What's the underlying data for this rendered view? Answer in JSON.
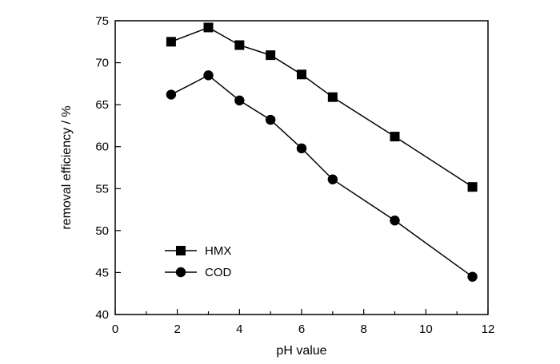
{
  "chart_data": {
    "type": "line",
    "title": "",
    "xlabel": "pH value",
    "ylabel": "removal efficiency / %",
    "xlim": [
      0,
      12
    ],
    "ylim": [
      40,
      75
    ],
    "x_ticks": [
      0,
      2,
      4,
      6,
      8,
      10,
      12
    ],
    "x_minor_ticks": [
      1,
      3,
      5,
      7,
      9,
      11
    ],
    "y_ticks": [
      40,
      45,
      50,
      55,
      60,
      65,
      70,
      75
    ],
    "grid": false,
    "legend_position": "bottom-left",
    "series": [
      {
        "name": "HMX",
        "marker": "square",
        "color": "#000000",
        "points": [
          {
            "x": 1.8,
            "y": 72.5
          },
          {
            "x": 3.0,
            "y": 74.2
          },
          {
            "x": 4.0,
            "y": 72.1
          },
          {
            "x": 5.0,
            "y": 70.9
          },
          {
            "x": 6.0,
            "y": 68.6
          },
          {
            "x": 7.0,
            "y": 65.9
          },
          {
            "x": 9.0,
            "y": 61.2
          },
          {
            "x": 11.5,
            "y": 55.2
          }
        ]
      },
      {
        "name": "COD",
        "marker": "circle",
        "color": "#000000",
        "points": [
          {
            "x": 1.8,
            "y": 66.2
          },
          {
            "x": 3.0,
            "y": 68.5
          },
          {
            "x": 4.0,
            "y": 65.5
          },
          {
            "x": 5.0,
            "y": 63.2
          },
          {
            "x": 6.0,
            "y": 59.8
          },
          {
            "x": 7.0,
            "y": 56.1
          },
          {
            "x": 9.0,
            "y": 51.2
          },
          {
            "x": 11.5,
            "y": 44.5
          }
        ]
      }
    ]
  }
}
